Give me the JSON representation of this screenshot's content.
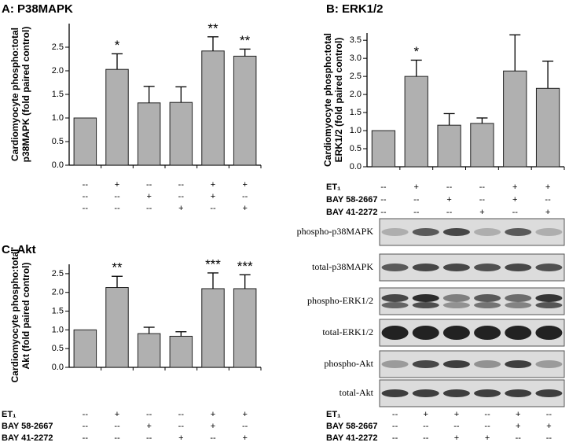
{
  "chart_data": [
    {
      "type": "bar",
      "title": "A: P38MAPK",
      "ylabel": [
        "Cardiomyocyte phospho:total",
        "p38MAPK (fold paired control)"
      ],
      "categories": [
        null,
        null,
        null,
        null,
        null,
        null
      ],
      "values": [
        1.0,
        2.03,
        1.32,
        1.33,
        2.42,
        2.31
      ],
      "errors": [
        0,
        0.33,
        0.35,
        0.33,
        0.3,
        0.15
      ],
      "annotations": [
        "",
        "*",
        "",
        "",
        "**",
        "**"
      ],
      "color": "#b0b0b0",
      "ylim": [
        0,
        3.0
      ],
      "yticks": [
        {
          "value": 0,
          "label": "0.0"
        },
        0.5,
        {
          "value": 1,
          "label": "1.0"
        },
        1.5,
        {
          "value": 2,
          "label": "2.0"
        },
        2.5
      ],
      "treatments": [
        {
          "marks": [
            "--",
            "+",
            "--",
            "--",
            "+",
            "+"
          ]
        },
        {
          "marks": [
            "--",
            "--",
            "+",
            "--",
            "+",
            "--"
          ]
        },
        {
          "marks": [
            "--",
            "--",
            "--",
            "+",
            "--",
            "+"
          ]
        }
      ]
    },
    {
      "type": "bar",
      "title": "B: ERK1/2",
      "ylabel": [
        "Cardiomyocyte phospho:total",
        "ERK1/2 (fold paired control)"
      ],
      "categories": [
        null,
        null,
        null,
        null,
        null,
        null
      ],
      "values": [
        1.0,
        2.5,
        1.15,
        1.2,
        2.65,
        2.17
      ],
      "errors": [
        0,
        0.45,
        0.32,
        0.15,
        1.0,
        0.75
      ],
      "annotations": [
        "",
        "*",
        "",
        "",
        "",
        ""
      ],
      "color": "#b0b0b0",
      "ylim": [
        0,
        3.7
      ],
      "yticks": [
        {
          "value": 0,
          "label": "0.0"
        },
        0.5,
        {
          "value": 1,
          "label": "1.0"
        },
        1.5,
        {
          "value": 2,
          "label": "2.0"
        },
        2.5,
        {
          "value": 3,
          "label": "3.0"
        },
        3.5
      ],
      "treatments": [
        {
          "label": "ET₁",
          "marks": [
            "--",
            "+",
            "--",
            "--",
            "+",
            "+"
          ]
        },
        {
          "label": "BAY 58-2667",
          "marks": [
            "--",
            "--",
            "+",
            "--",
            "+",
            "--"
          ]
        },
        {
          "label": "BAY 41-2272",
          "marks": [
            "--",
            "--",
            "--",
            "+",
            "--",
            "+"
          ]
        }
      ]
    },
    {
      "type": "bar",
      "title": "C: Akt",
      "ylabel": [
        "Cardiomyocyte phospho:total",
        "Akt (fold paired control)"
      ],
      "categories": [
        null,
        null,
        null,
        null,
        null,
        null
      ],
      "values": [
        1.0,
        2.13,
        0.9,
        0.83,
        2.1,
        2.1
      ],
      "errors": [
        0,
        0.3,
        0.17,
        0.12,
        0.42,
        0.37
      ],
      "annotations": [
        "",
        "**",
        "",
        "",
        "***",
        "***"
      ],
      "color": "#b0b0b0",
      "ylim": [
        0,
        2.75
      ],
      "yticks": [
        {
          "value": 0,
          "label": "0.0"
        },
        0.5,
        {
          "value": 1,
          "label": "1.0"
        },
        1.5,
        {
          "value": 2,
          "label": "2.0"
        },
        2.5
      ],
      "treatments": [
        {
          "label": "ET₁",
          "marks": [
            "--",
            "+",
            "--",
            "--",
            "+",
            "+"
          ]
        },
        {
          "label": "BAY 58-2667",
          "marks": [
            "--",
            "--",
            "+",
            "--",
            "+",
            "--"
          ]
        },
        {
          "label": "BAY 41-2272",
          "marks": [
            "--",
            "--",
            "--",
            "+",
            "--",
            "+"
          ]
        }
      ]
    }
  ],
  "blot": {
    "bands": [
      "phospho-p38MAPK",
      "total-p38MAPK",
      "phospho-ERK1/2",
      "total-ERK1/2",
      "phospho-Akt",
      "total-Akt"
    ],
    "treatments": [
      {
        "label": "ET₁",
        "marks": [
          "--",
          "+",
          "+",
          "--",
          "+",
          "--"
        ]
      },
      {
        "label": "BAY 58-2667",
        "marks": [
          "--",
          "--",
          "--",
          "--",
          "+",
          "+"
        ]
      },
      {
        "label": "BAY 41-2272",
        "marks": [
          "--",
          "--",
          "+",
          "+",
          "--",
          "--"
        ]
      }
    ]
  }
}
